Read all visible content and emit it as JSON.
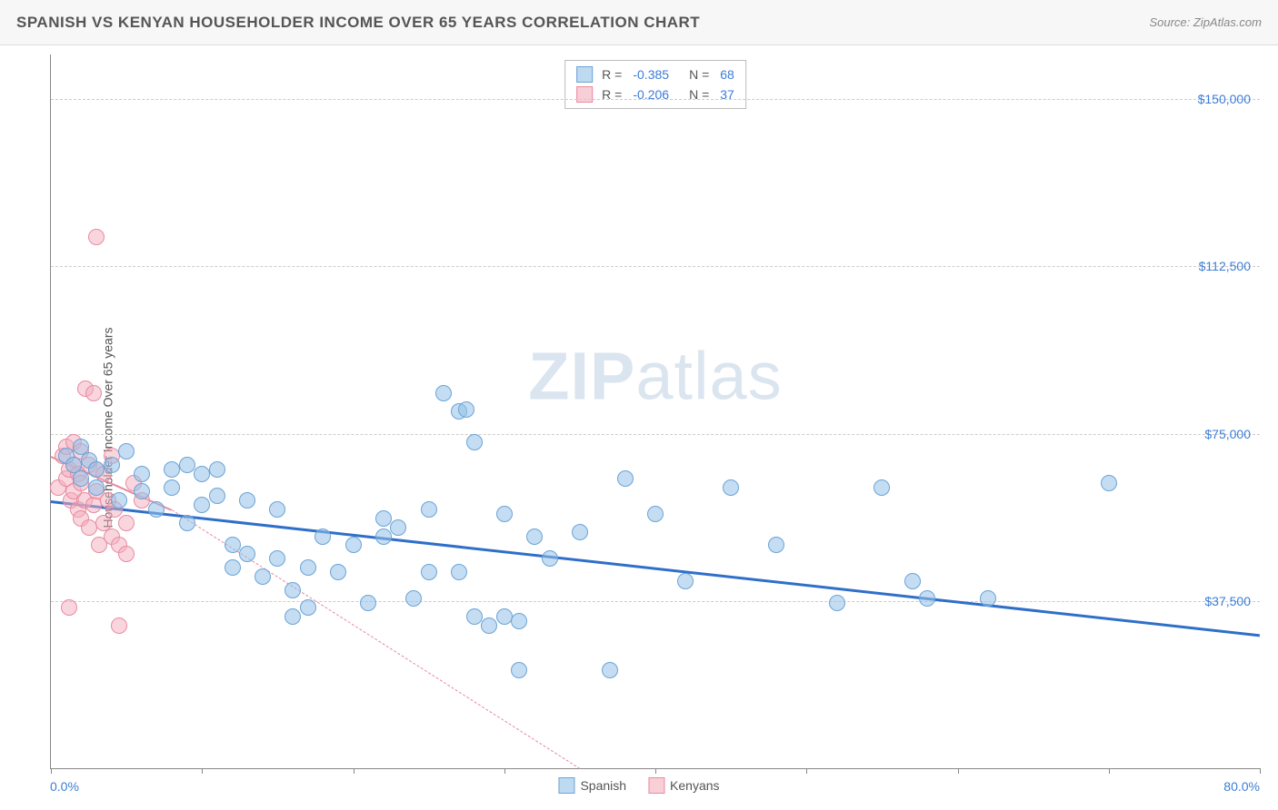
{
  "header": {
    "title": "SPANISH VS KENYAN HOUSEHOLDER INCOME OVER 65 YEARS CORRELATION CHART",
    "source_prefix": "Source: ",
    "source_name": "ZipAtlas.com"
  },
  "axes": {
    "y_label": "Householder Income Over 65 years",
    "x_min_label": "0.0%",
    "x_max_label": "80.0%",
    "xlim": [
      0,
      80
    ],
    "ylim": [
      0,
      160000
    ],
    "y_gridlines": [
      {
        "value": 37500,
        "label": "$37,500"
      },
      {
        "value": 75000,
        "label": "$75,000"
      },
      {
        "value": 112500,
        "label": "$112,500"
      },
      {
        "value": 150000,
        "label": "$150,000"
      }
    ],
    "x_ticks": [
      0,
      10,
      20,
      30,
      40,
      50,
      60,
      70,
      80
    ]
  },
  "stats_legend": {
    "rows": [
      {
        "swatch": "blue",
        "r_label": "R =",
        "r_value": "-0.385",
        "n_label": "N =",
        "n_value": "68"
      },
      {
        "swatch": "pink",
        "r_label": "R =",
        "r_value": "-0.206",
        "n_label": "N =",
        "n_value": "37"
      }
    ]
  },
  "bottom_legend": {
    "items": [
      {
        "swatch": "blue",
        "label": "Spanish"
      },
      {
        "swatch": "pink",
        "label": "Kenyans"
      }
    ]
  },
  "watermark": {
    "bold": "ZIP",
    "light": "atlas"
  },
  "style": {
    "point_radius": 9,
    "colors": {
      "blue_fill": "rgba(147,193,232,0.55)",
      "blue_stroke": "#6ba3d6",
      "pink_fill": "rgba(244,174,189,0.5)",
      "pink_stroke": "#e88aa0",
      "blue_line": "#2f6fc9",
      "pink_line": "#e58aa0",
      "grid": "#cccccc",
      "axis": "#888888",
      "tick_text": "#3b7dd8",
      "background": "#ffffff",
      "header_bg": "#f7f7f7"
    },
    "trend_lines": {
      "blue": {
        "x1": 0,
        "y1": 60000,
        "x2": 80,
        "y2": 30000,
        "width": 3,
        "dash": "solid"
      },
      "pink_solid": {
        "x1": 0,
        "y1": 70000,
        "x2": 8,
        "y2": 58000,
        "width": 2,
        "dash": "solid"
      },
      "pink_dash": {
        "x1": 8,
        "y1": 58000,
        "x2": 35,
        "y2": 0,
        "width": 1,
        "dash": "dashed"
      }
    }
  },
  "series": {
    "spanish": [
      [
        1,
        70000
      ],
      [
        1.5,
        68000
      ],
      [
        2,
        72000
      ],
      [
        2,
        65000
      ],
      [
        2.5,
        69000
      ],
      [
        3,
        63000
      ],
      [
        3,
        67000
      ],
      [
        4,
        68000
      ],
      [
        4.5,
        60000
      ],
      [
        5,
        71000
      ],
      [
        6,
        62000
      ],
      [
        6,
        66000
      ],
      [
        7,
        58000
      ],
      [
        8,
        67000
      ],
      [
        8,
        63000
      ],
      [
        9,
        55000
      ],
      [
        9,
        68000
      ],
      [
        10,
        66000
      ],
      [
        10,
        59000
      ],
      [
        11,
        61000
      ],
      [
        11,
        67000
      ],
      [
        12,
        50000
      ],
      [
        12,
        45000
      ],
      [
        13,
        60000
      ],
      [
        13,
        48000
      ],
      [
        14,
        43000
      ],
      [
        15,
        47000
      ],
      [
        15,
        58000
      ],
      [
        16,
        40000
      ],
      [
        16,
        34000
      ],
      [
        17,
        36000
      ],
      [
        17,
        45000
      ],
      [
        18,
        52000
      ],
      [
        19,
        44000
      ],
      [
        20,
        50000
      ],
      [
        21,
        37000
      ],
      [
        22,
        56000
      ],
      [
        22,
        52000
      ],
      [
        23,
        54000
      ],
      [
        24,
        38000
      ],
      [
        25,
        58000
      ],
      [
        25,
        44000
      ],
      [
        26,
        84000
      ],
      [
        27,
        44000
      ],
      [
        27,
        80000
      ],
      [
        27.5,
        80500
      ],
      [
        28,
        34000
      ],
      [
        28,
        73000
      ],
      [
        29,
        32000
      ],
      [
        30,
        57000
      ],
      [
        30,
        34000
      ],
      [
        31,
        22000
      ],
      [
        31,
        33000
      ],
      [
        32,
        52000
      ],
      [
        33,
        47000
      ],
      [
        35,
        53000
      ],
      [
        37,
        22000
      ],
      [
        38,
        65000
      ],
      [
        40,
        57000
      ],
      [
        42,
        42000
      ],
      [
        45,
        63000
      ],
      [
        48,
        50000
      ],
      [
        52,
        37000
      ],
      [
        55,
        63000
      ],
      [
        57,
        42000
      ],
      [
        58,
        38000
      ],
      [
        62,
        38000
      ],
      [
        70,
        64000
      ]
    ],
    "kenyans": [
      [
        0.5,
        63000
      ],
      [
        0.8,
        70000
      ],
      [
        1,
        65000
      ],
      [
        1,
        72000
      ],
      [
        1.2,
        67000
      ],
      [
        1.3,
        60000
      ],
      [
        1.5,
        73000
      ],
      [
        1.5,
        68000
      ],
      [
        1.5,
        62000
      ],
      [
        1.8,
        66000
      ],
      [
        1.8,
        58000
      ],
      [
        2,
        71000
      ],
      [
        2,
        64000
      ],
      [
        2,
        56000
      ],
      [
        2.2,
        60000
      ],
      [
        2.3,
        85000
      ],
      [
        2.5,
        68000
      ],
      [
        2.5,
        54000
      ],
      [
        2.8,
        59000
      ],
      [
        2.8,
        84000
      ],
      [
        3,
        67000
      ],
      [
        3,
        62000
      ],
      [
        3.2,
        50000
      ],
      [
        3.5,
        66000
      ],
      [
        3.5,
        55000
      ],
      [
        3.8,
        60000
      ],
      [
        4,
        52000
      ],
      [
        4,
        70000
      ],
      [
        3,
        119000
      ],
      [
        4.2,
        58000
      ],
      [
        4.5,
        50000
      ],
      [
        5,
        55000
      ],
      [
        5,
        48000
      ],
      [
        5.5,
        64000
      ],
      [
        1.2,
        36000
      ],
      [
        4.5,
        32000
      ],
      [
        6,
        60000
      ]
    ]
  }
}
